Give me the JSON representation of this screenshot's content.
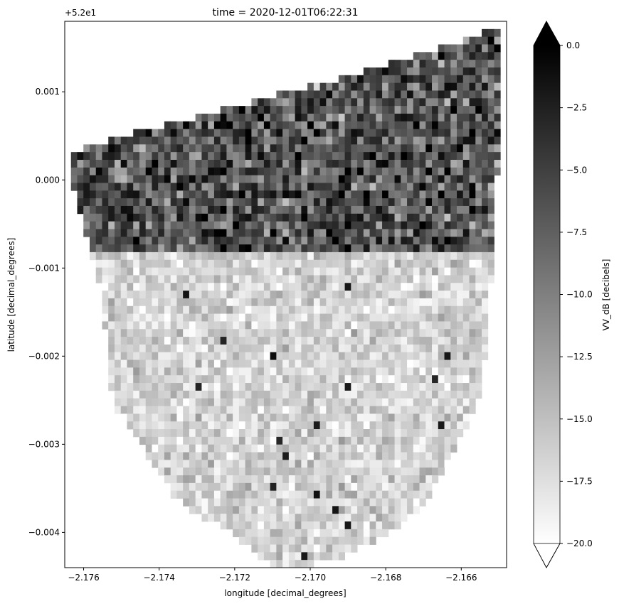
{
  "chart_data": {
    "type": "heatmap",
    "title": "time = 2020-12-01T06:22:31",
    "xlabel": "longitude [decimal_degrees]",
    "ylabel": "latitude [decimal_degrees]",
    "y_offset_label": "+5.2e1",
    "xlim": [
      -2.1765,
      -2.1648
    ],
    "ylim": [
      -0.0044,
      0.0018
    ],
    "x_ticks": [
      {
        "value": -2.176,
        "label": "−2.176"
      },
      {
        "value": -2.174,
        "label": "−2.174"
      },
      {
        "value": -2.172,
        "label": "−2.172"
      },
      {
        "value": -2.17,
        "label": "−2.170"
      },
      {
        "value": -2.168,
        "label": "−2.168"
      },
      {
        "value": -2.166,
        "label": "−2.166"
      }
    ],
    "y_ticks": [
      {
        "value": 0.001,
        "label": "0.001"
      },
      {
        "value": 0.0,
        "label": "0.000"
      },
      {
        "value": -0.001,
        "label": "−0.001"
      },
      {
        "value": -0.002,
        "label": "−0.002"
      },
      {
        "value": -0.003,
        "label": "−0.003"
      },
      {
        "value": -0.004,
        "label": "−0.004"
      }
    ],
    "colorbar": {
      "label": "VV_dB [decibels]",
      "vmin": -20.0,
      "vmax": 0.0,
      "colormap": "gray_r",
      "extend": "both",
      "ticks": [
        {
          "value": 0.0,
          "label": "0.0"
        },
        {
          "value": -2.5,
          "label": "−2.5"
        },
        {
          "value": -5.0,
          "label": "−5.0"
        },
        {
          "value": -7.5,
          "label": "−7.5"
        },
        {
          "value": -10.0,
          "label": "−10.0"
        },
        {
          "value": -12.5,
          "label": "−12.5"
        },
        {
          "value": -15.0,
          "label": "−15.0"
        },
        {
          "value": -17.5,
          "label": "−17.5"
        },
        {
          "value": -20.0,
          "label": "−20.0"
        }
      ]
    },
    "field": {
      "rows": 71,
      "cols": 71,
      "left_region_mean_db": -16.5,
      "right_region_mean_db": -6.5,
      "noise_db": 3.0
    },
    "grid": false
  }
}
